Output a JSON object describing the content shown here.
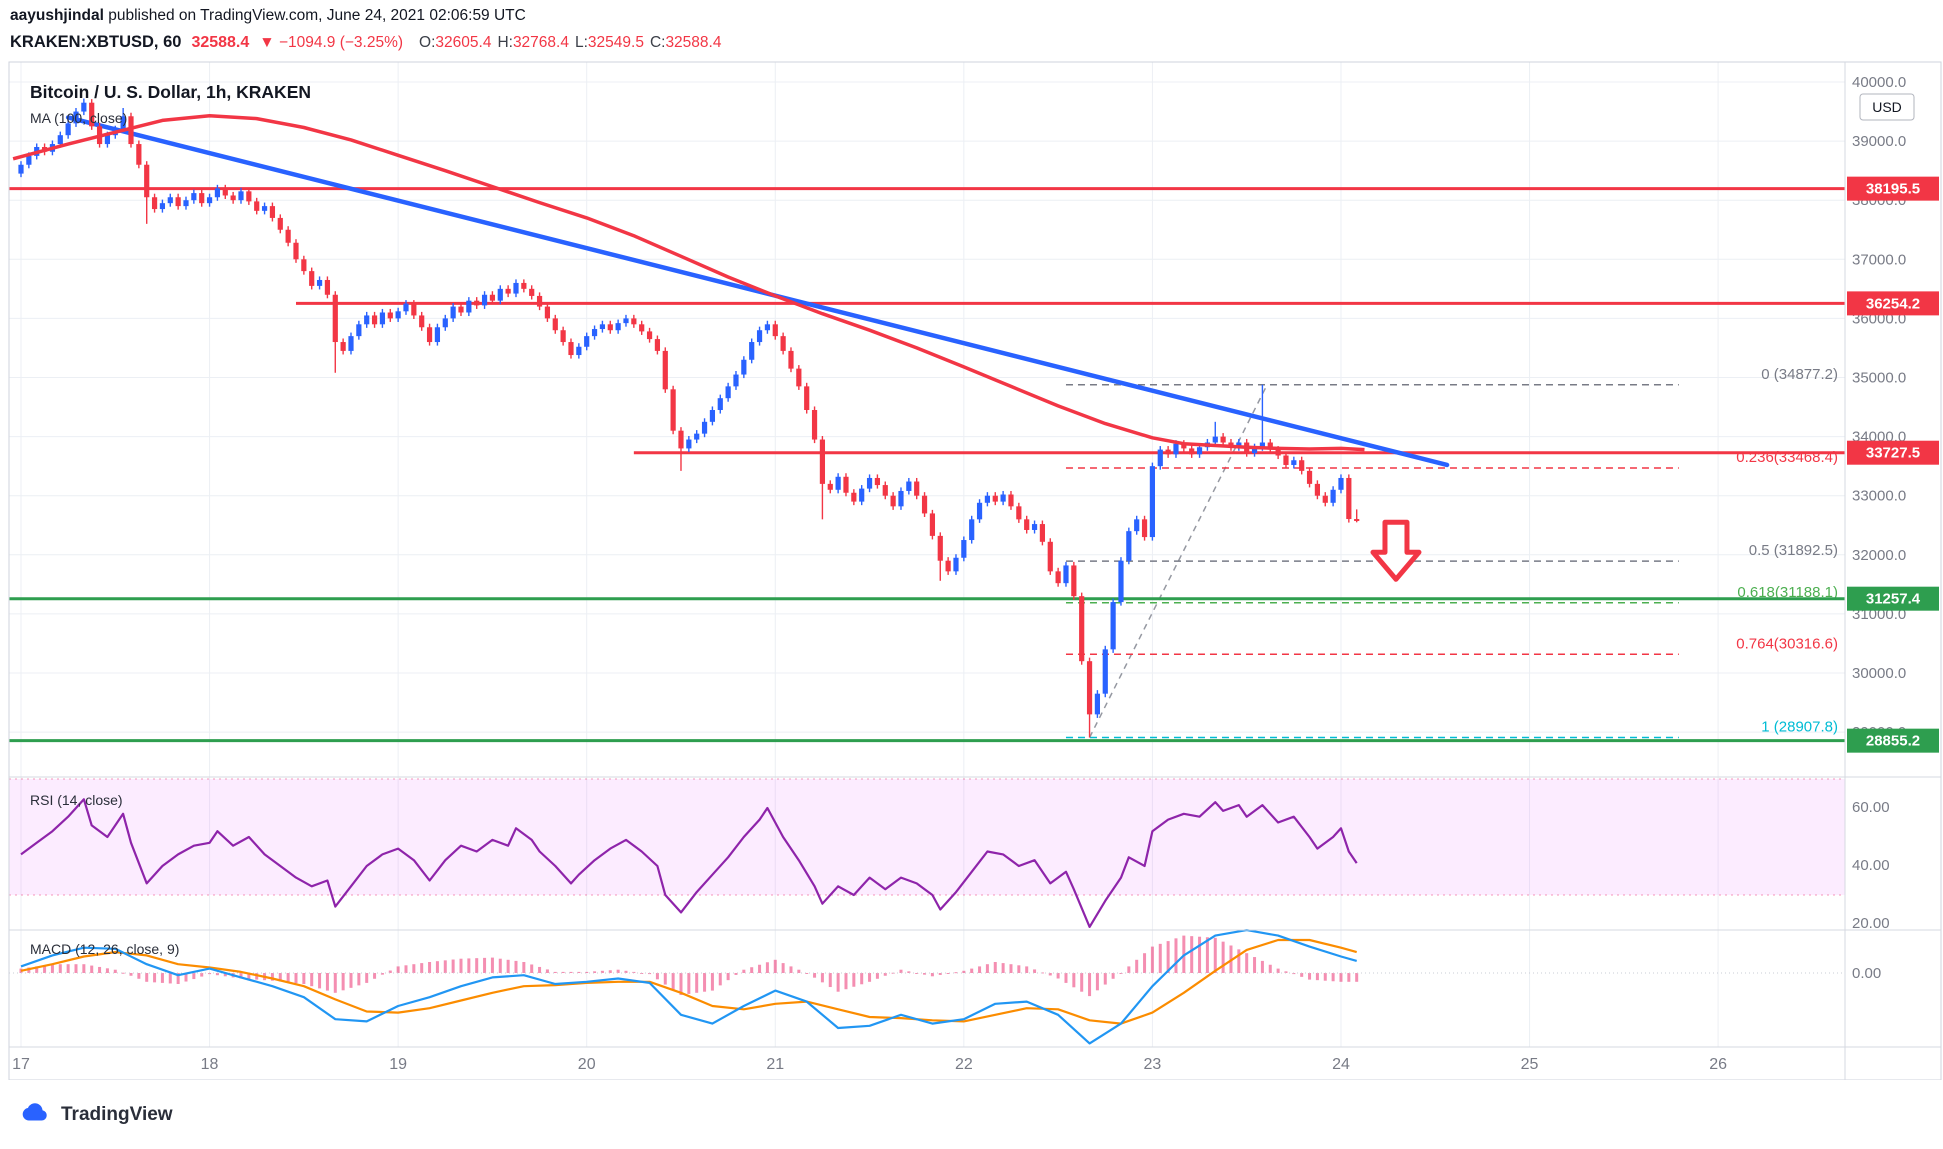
{
  "page": {
    "publish_line": {
      "author": "aayushjindal",
      "rest": " published on TradingView.com, June 24, 2021 02:06:59 UTC"
    },
    "symbol_bar": {
      "symbol": "KRAKEN:XBTUSD, 60",
      "last": "32588.4",
      "direction": "▼",
      "change": "−1094.9 (−3.25%)",
      "ohlc": [
        {
          "label": "O:",
          "value": "32605.4"
        },
        {
          "label": "H:",
          "value": "32768.4"
        },
        {
          "label": "L:",
          "value": "32549.5"
        },
        {
          "label": "C:",
          "value": "32588.4"
        }
      ]
    },
    "footer_brand": "TradingView"
  },
  "chart_data": {
    "type": "candlestick",
    "title": "Bitcoin / U. S. Dollar, 1h, KRAKEN",
    "ma_label": "MA (100, close)",
    "colors": {
      "up": "#2962ff",
      "down": "#f23645",
      "ma": "#f23645",
      "trend": "#2962ff",
      "grid": "#eceff4",
      "axis_text": "#787b86",
      "level_green": "#2e9e4f",
      "rsi": "#8e24aa",
      "rsi_band": "rgba(224,64,251,0.10)",
      "rsi_band_border": "rgba(233,30,99,0.45)",
      "macd": "#2196f3",
      "signal": "#fb8c00",
      "hist": "#e91e63",
      "fib": {
        "gray": "#787b86",
        "red": "#f23645",
        "green": "#4caf50",
        "teal": "#00bcd4"
      }
    },
    "x_axis": {
      "day_labels": [
        "17",
        "18",
        "19",
        "20",
        "21",
        "22",
        "23",
        "24",
        "25",
        "26"
      ],
      "hours_per_day": 24
    },
    "y_axis": {
      "unit": "USD",
      "gridlines": [
        {
          "price": 40000,
          "label": "40000.0"
        },
        {
          "price": 39000,
          "label": "39000.0"
        },
        {
          "price": 38000,
          "label": "38000.0"
        },
        {
          "price": 37000,
          "label": "37000.0"
        },
        {
          "price": 36000,
          "label": "36000.0"
        },
        {
          "price": 35000,
          "label": "35000.0"
        },
        {
          "price": 34000,
          "label": "34000.0"
        },
        {
          "price": 33000,
          "label": "33000.0"
        },
        {
          "price": 32000,
          "label": "32000.0"
        },
        {
          "price": 31000,
          "label": "31000.0"
        },
        {
          "price": 30000,
          "label": "30000.0"
        },
        {
          "price": 29000,
          "label": "29000.0"
        }
      ]
    },
    "levels": [
      {
        "price": 38195.5,
        "color": "#f23645",
        "from_hour": null,
        "badge": "38195.5"
      },
      {
        "price": 36254.2,
        "color": "#f23645",
        "from_hour": 35,
        "badge": "36254.2"
      },
      {
        "price": 33727.5,
        "color": "#f23645",
        "from_hour": 78,
        "badge": "33727.5"
      },
      {
        "price": 31257.4,
        "color": "#2e9e4f",
        "from_hour": null,
        "badge": "31257.4"
      },
      {
        "price": 28855.2,
        "color": "#2e9e4f",
        "from_hour": null,
        "badge": "28855.2"
      }
    ],
    "trendline": {
      "from": [
        6,
        39400
      ],
      "to": [
        181.5,
        33520
      ]
    },
    "fib": {
      "from_hour": 133,
      "to_hour": 211,
      "base": [
        [
          136,
          28907.8
        ],
        [
          158.6,
          34877.2
        ]
      ],
      "levels": [
        {
          "label": "0 (34877.2)",
          "price": 34877.2,
          "style": "gray"
        },
        {
          "label": "0.236(33468.4)",
          "price": 33468.4,
          "style": "red"
        },
        {
          "label": "0.5 (31892.5)",
          "price": 31892.5,
          "style": "gray"
        },
        {
          "label": "0.618(31188.1)",
          "price": 31188.1,
          "style": "green"
        },
        {
          "label": "0.764(30316.6)",
          "price": 30316.6,
          "style": "red"
        },
        {
          "label": "1 (28907.8)",
          "price": 28907.8,
          "style": "teal"
        }
      ]
    },
    "arrow": {
      "hour": 175,
      "top_price": 32550
    },
    "candles": {
      "first_open": 38450,
      "closes": [
        38600,
        38750,
        38900,
        38820,
        38950,
        39100,
        39300,
        39500,
        39650,
        39250,
        38950,
        39100,
        39200,
        39420,
        38950,
        38600,
        38050,
        37850,
        37950,
        38050,
        37900,
        38000,
        38120,
        37950,
        38050,
        38200,
        38080,
        38000,
        38150,
        37980,
        37820,
        37900,
        37700,
        37500,
        37280,
        37000,
        36800,
        36550,
        36650,
        36400,
        35600,
        35450,
        35700,
        35900,
        36050,
        35900,
        36100,
        36000,
        36120,
        36250,
        36050,
        35850,
        35600,
        35850,
        36000,
        36200,
        36100,
        36300,
        36220,
        36400,
        36300,
        36500,
        36420,
        36600,
        36500,
        36380,
        36200,
        36000,
        35800,
        35600,
        35380,
        35520,
        35700,
        35820,
        35900,
        35800,
        35920,
        36000,
        35900,
        35780,
        35650,
        35450,
        34800,
        34100,
        33800,
        33950,
        34050,
        34250,
        34450,
        34650,
        34850,
        35050,
        35300,
        35600,
        35800,
        35900,
        35700,
        35450,
        35150,
        34850,
        34450,
        33950,
        33200,
        33100,
        33320,
        33050,
        32900,
        33120,
        33300,
        33180,
        33000,
        32820,
        33080,
        33240,
        33000,
        32700,
        32320,
        31900,
        31720,
        31950,
        32250,
        32600,
        32880,
        33000,
        32900,
        33020,
        32820,
        32600,
        32420,
        32520,
        32220,
        31720,
        31520,
        31820,
        31300,
        30200,
        29300,
        29650,
        30400,
        31200,
        31900,
        32400,
        32600,
        32300,
        33500,
        33780,
        33700,
        33880,
        33800,
        33700,
        33820,
        33900,
        34000,
        33900,
        33820,
        33900,
        33720,
        33820,
        33900,
        33780,
        33680,
        33520,
        33600,
        33420,
        33200,
        33000,
        32880,
        33100,
        33300,
        32605.4,
        32588.4
      ],
      "wicks": [
        [
          8,
          39720,
          null
        ],
        [
          13,
          39560,
          null
        ],
        [
          16,
          null,
          37600
        ],
        [
          40,
          null,
          35080
        ],
        [
          84,
          null,
          33420
        ],
        [
          102,
          null,
          32600
        ],
        [
          117,
          null,
          31560
        ],
        [
          136,
          null,
          28907.8
        ],
        [
          152,
          34250,
          null
        ],
        [
          158,
          34877.2,
          null
        ],
        [
          170,
          32768.4,
          32549.5
        ]
      ]
    },
    "ma_points": [
      [
        -1,
        38700
      ],
      [
        6,
        38950
      ],
      [
        12,
        39150
      ],
      [
        18,
        39350
      ],
      [
        24,
        39430
      ],
      [
        30,
        39380
      ],
      [
        36,
        39230
      ],
      [
        42,
        39020
      ],
      [
        48,
        38760
      ],
      [
        54,
        38500
      ],
      [
        60,
        38230
      ],
      [
        66,
        37960
      ],
      [
        72,
        37700
      ],
      [
        78,
        37400
      ],
      [
        84,
        37050
      ],
      [
        90,
        36700
      ],
      [
        96,
        36380
      ],
      [
        102,
        36080
      ],
      [
        108,
        35800
      ],
      [
        114,
        35500
      ],
      [
        120,
        35180
      ],
      [
        126,
        34850
      ],
      [
        132,
        34520
      ],
      [
        138,
        34220
      ],
      [
        144,
        33980
      ],
      [
        148,
        33880
      ],
      [
        152,
        33850
      ],
      [
        156,
        33820
      ],
      [
        160,
        33800
      ],
      [
        164,
        33790
      ],
      [
        168,
        33800
      ],
      [
        171,
        33780
      ]
    ],
    "rsi": {
      "label": "RSI (14, close)",
      "band": [
        30,
        70
      ],
      "axis_labels": [
        {
          "value": 60,
          "label": "60.00"
        },
        {
          "value": 40,
          "label": "40.00"
        },
        {
          "value": 20,
          "label": "20.00"
        }
      ],
      "points": [
        [
          0,
          44
        ],
        [
          2,
          48
        ],
        [
          4,
          52
        ],
        [
          6,
          57
        ],
        [
          8,
          63
        ],
        [
          9,
          54
        ],
        [
          11,
          50
        ],
        [
          13,
          58
        ],
        [
          14,
          48
        ],
        [
          16,
          34
        ],
        [
          18,
          40
        ],
        [
          20,
          44
        ],
        [
          22,
          47
        ],
        [
          24,
          48
        ],
        [
          25,
          52
        ],
        [
          27,
          47
        ],
        [
          29,
          50
        ],
        [
          31,
          44
        ],
        [
          33,
          40
        ],
        [
          35,
          36
        ],
        [
          37,
          33
        ],
        [
          39,
          35
        ],
        [
          40,
          26
        ],
        [
          42,
          33
        ],
        [
          44,
          40
        ],
        [
          46,
          44
        ],
        [
          48,
          46
        ],
        [
          50,
          42
        ],
        [
          52,
          35
        ],
        [
          54,
          42
        ],
        [
          56,
          47
        ],
        [
          58,
          45
        ],
        [
          60,
          49
        ],
        [
          62,
          47
        ],
        [
          63,
          53
        ],
        [
          65,
          49
        ],
        [
          66,
          45
        ],
        [
          68,
          40
        ],
        [
          70,
          34
        ],
        [
          71,
          37
        ],
        [
          73,
          42
        ],
        [
          75,
          46
        ],
        [
          77,
          49
        ],
        [
          79,
          45
        ],
        [
          81,
          40
        ],
        [
          82,
          30
        ],
        [
          84,
          24
        ],
        [
          86,
          31
        ],
        [
          88,
          37
        ],
        [
          90,
          43
        ],
        [
          92,
          50
        ],
        [
          94,
          56
        ],
        [
          95,
          60
        ],
        [
          97,
          50
        ],
        [
          99,
          42
        ],
        [
          101,
          33
        ],
        [
          102,
          27
        ],
        [
          104,
          33
        ],
        [
          106,
          30
        ],
        [
          108,
          36
        ],
        [
          110,
          32
        ],
        [
          112,
          36
        ],
        [
          114,
          34
        ],
        [
          116,
          30
        ],
        [
          117,
          25
        ],
        [
          119,
          31
        ],
        [
          121,
          38
        ],
        [
          123,
          45
        ],
        [
          125,
          44
        ],
        [
          127,
          40
        ],
        [
          129,
          42
        ],
        [
          131,
          34
        ],
        [
          133,
          38
        ],
        [
          134,
          32
        ],
        [
          136,
          19
        ],
        [
          138,
          28
        ],
        [
          140,
          36
        ],
        [
          141,
          43
        ],
        [
          143,
          40
        ],
        [
          144,
          52
        ],
        [
          146,
          56
        ],
        [
          148,
          58
        ],
        [
          150,
          57
        ],
        [
          152,
          62
        ],
        [
          153,
          59
        ],
        [
          155,
          61
        ],
        [
          156,
          57
        ],
        [
          158,
          61
        ],
        [
          160,
          55
        ],
        [
          162,
          57
        ],
        [
          164,
          50
        ],
        [
          165,
          46
        ],
        [
          167,
          50
        ],
        [
          168,
          53
        ],
        [
          169,
          45
        ],
        [
          170,
          41
        ]
      ]
    },
    "macd": {
      "label": "MACD (12, 26, close, 9)",
      "zero_label": "0.00",
      "macd_points": [
        [
          0,
          30
        ],
        [
          4,
          80
        ],
        [
          8,
          115
        ],
        [
          12,
          110
        ],
        [
          16,
          40
        ],
        [
          20,
          -10
        ],
        [
          24,
          20
        ],
        [
          28,
          -20
        ],
        [
          32,
          -60
        ],
        [
          36,
          -110
        ],
        [
          40,
          -210
        ],
        [
          44,
          -220
        ],
        [
          48,
          -150
        ],
        [
          52,
          -110
        ],
        [
          56,
          -60
        ],
        [
          60,
          -20
        ],
        [
          64,
          -10
        ],
        [
          68,
          -50
        ],
        [
          72,
          -40
        ],
        [
          76,
          -25
        ],
        [
          80,
          -45
        ],
        [
          84,
          -190
        ],
        [
          88,
          -230
        ],
        [
          92,
          -150
        ],
        [
          96,
          -80
        ],
        [
          100,
          -130
        ],
        [
          104,
          -250
        ],
        [
          108,
          -240
        ],
        [
          112,
          -190
        ],
        [
          116,
          -230
        ],
        [
          120,
          -210
        ],
        [
          124,
          -140
        ],
        [
          128,
          -130
        ],
        [
          132,
          -190
        ],
        [
          136,
          -320
        ],
        [
          140,
          -230
        ],
        [
          144,
          -60
        ],
        [
          148,
          80
        ],
        [
          152,
          170
        ],
        [
          156,
          195
        ],
        [
          160,
          170
        ],
        [
          164,
          120
        ],
        [
          168,
          75
        ],
        [
          170,
          55
        ]
      ],
      "signal_points": [
        [
          0,
          10
        ],
        [
          4,
          40
        ],
        [
          8,
          75
        ],
        [
          12,
          95
        ],
        [
          16,
          80
        ],
        [
          20,
          40
        ],
        [
          24,
          25
        ],
        [
          28,
          5
        ],
        [
          32,
          -25
        ],
        [
          36,
          -60
        ],
        [
          40,
          -120
        ],
        [
          44,
          -175
        ],
        [
          48,
          -180
        ],
        [
          52,
          -160
        ],
        [
          56,
          -125
        ],
        [
          60,
          -90
        ],
        [
          64,
          -60
        ],
        [
          68,
          -55
        ],
        [
          72,
          -45
        ],
        [
          76,
          -40
        ],
        [
          80,
          -40
        ],
        [
          84,
          -90
        ],
        [
          88,
          -150
        ],
        [
          92,
          -165
        ],
        [
          96,
          -140
        ],
        [
          100,
          -130
        ],
        [
          104,
          -165
        ],
        [
          108,
          -200
        ],
        [
          112,
          -205
        ],
        [
          116,
          -215
        ],
        [
          120,
          -220
        ],
        [
          124,
          -190
        ],
        [
          128,
          -160
        ],
        [
          132,
          -165
        ],
        [
          136,
          -215
        ],
        [
          140,
          -230
        ],
        [
          144,
          -180
        ],
        [
          148,
          -90
        ],
        [
          152,
          10
        ],
        [
          156,
          105
        ],
        [
          160,
          150
        ],
        [
          164,
          150
        ],
        [
          168,
          115
        ],
        [
          170,
          95
        ]
      ]
    }
  }
}
